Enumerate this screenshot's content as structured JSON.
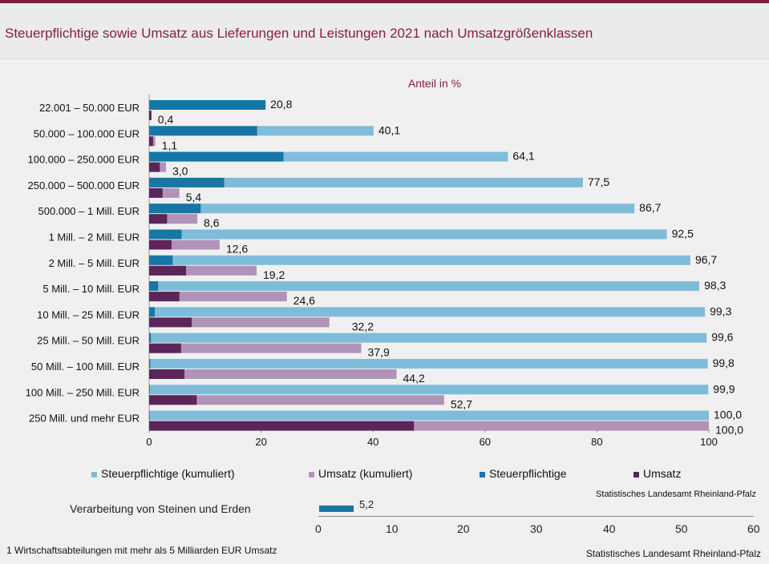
{
  "title": "Steuerpflichtige sowie Umsatz aus Lieferungen und Leistungen 2021 nach Umsatzgrößenklassen",
  "chart_data": {
    "type": "bar",
    "orientation": "horizontal",
    "subtitle": "Anteil in %",
    "xlim": [
      0,
      100
    ],
    "xticks": [
      "0",
      "20",
      "40",
      "60",
      "80",
      "100"
    ],
    "categories": [
      "22.001 – 50.000 EUR",
      "50.000 – 100.000 EUR",
      "100.000 – 250.000 EUR",
      "250.000 – 500.000 EUR",
      "500.000 – 1 Mill. EUR",
      "1 Mill. – 2 Mill. EUR",
      "2 Mill. – 5 Mill. EUR",
      "5 Mill. – 10 Mill. EUR",
      "10 Mill. – 25 Mill. EUR",
      "25 Mill. – 50 Mill. EUR",
      "50 Mill. – 100 Mill. EUR",
      "100 Mill. – 250 Mill. EUR",
      "250 Mill. und mehr EUR"
    ],
    "series": [
      {
        "name": "Steuerpflichtige (kumuliert)",
        "color": "#7fbcd9",
        "values": [
          20.8,
          40.1,
          64.1,
          77.5,
          86.7,
          92.5,
          96.7,
          98.3,
          99.3,
          99.6,
          99.8,
          99.9,
          100.0
        ],
        "labels": [
          "20,8",
          "40,1",
          "64,1",
          "77,5",
          "86,7",
          "92,5",
          "96,7",
          "98,3",
          "99,3",
          "99,6",
          "99,8",
          "99,9",
          "100,0"
        ]
      },
      {
        "name": "Umsatz (kumuliert)",
        "color": "#b293b8",
        "values": [
          0.4,
          1.1,
          3.0,
          5.4,
          8.6,
          12.6,
          19.2,
          24.6,
          32.2,
          37.9,
          44.2,
          52.7,
          100.0
        ],
        "labels": [
          "0,4",
          "1,1",
          "3,0",
          "5,4",
          "8,6",
          "12,6",
          "19,2",
          "24,6",
          "32,2",
          "37,9",
          "44,2",
          "52,7",
          "100,0"
        ]
      },
      {
        "name": "Steuerpflichtige",
        "color": "#1777a4",
        "values": [
          20.8,
          19.3,
          24.0,
          13.4,
          9.2,
          5.8,
          4.2,
          1.6,
          1.0,
          0.3,
          0.2,
          0.1,
          0.1
        ]
      },
      {
        "name": "Umsatz",
        "color": "#5b2559",
        "values": [
          0.4,
          0.7,
          1.9,
          2.4,
          3.2,
          4.0,
          6.6,
          5.4,
          7.6,
          5.7,
          6.3,
          8.5,
          47.3
        ]
      }
    ]
  },
  "source": "Statistisches Landesamt Rheinland-Pfalz",
  "underlying": {
    "row_label": "Verarbeitung von Steinen und Erden",
    "value_label": "5,2",
    "ticks": [
      "0",
      "10",
      "20",
      "30",
      "40",
      "50",
      "60"
    ],
    "footnote": "1 Wirtschaftsabteilungen  mit mehr als 5 Milliarden  EUR Umsatz",
    "source": "Statistisches Landesamt  Rheinland-Pfalz"
  }
}
